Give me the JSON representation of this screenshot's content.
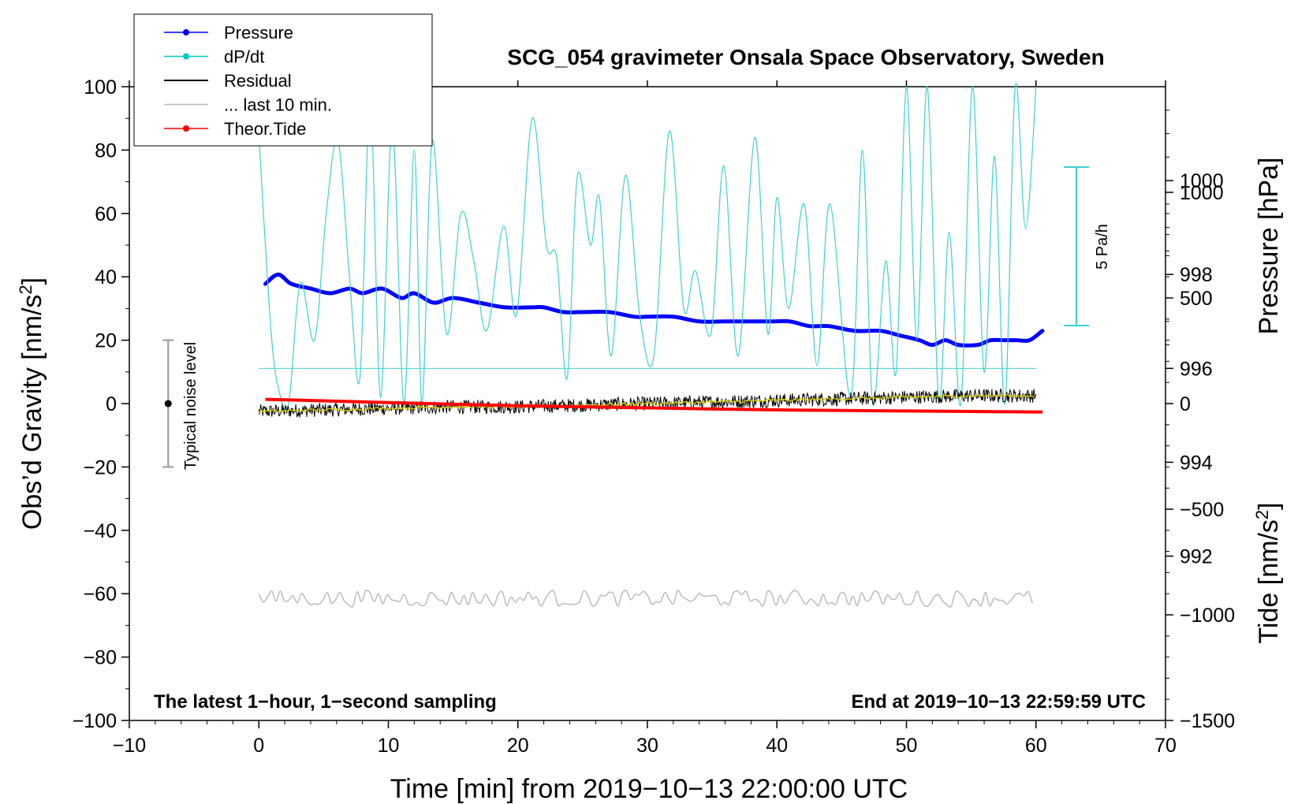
{
  "chart_data": {
    "type": "line",
    "title": "SCG_054 gravimeter Onsala Space Observatory, Sweden",
    "xlabel": "Time [min] from 2019−10−13 22:00:00 UTC",
    "ylabel_left": "Obs’d Gravity [nm/s",
    "ylabel_left_sup": "2",
    "ylabel_left_end": "]",
    "ylabel_right_pressure": "Pressure [hPa]",
    "ylabel_right_tide": "Tide [nm/s",
    "ylabel_right_tide_sup": "2",
    "ylabel_right_tide_end": "]",
    "xlim": [
      -10,
      70
    ],
    "ylim": [
      -100,
      100
    ],
    "pressure_lim": [
      988.5,
      1002
    ],
    "tide_lim": [
      -1500,
      1500
    ],
    "x_ticks": [
      "−10",
      "0",
      "10",
      "20",
      "30",
      "40",
      "50",
      "60",
      "70"
    ],
    "y_ticks": [
      "−100",
      "−80",
      "−60",
      "−40",
      "−20",
      "0",
      "20",
      "40",
      "60",
      "80",
      "100"
    ],
    "pressure_ticks": [
      "992",
      "994",
      "996",
      "998",
      "1000"
    ],
    "tide_ticks": [
      "−1500",
      "−1000",
      "−500",
      "0",
      "500",
      "1000"
    ],
    "annotation_left": "The latest 1−hour, 1−second sampling",
    "annotation_right": "End at 2019−10−13 22:59:59 UTC",
    "noise_label": "Typical noise level",
    "noise_range": [
      -20,
      20
    ],
    "dpdt_scale_label": "5 Pa/h",
    "dpdt_baseline_pressure": 996,
    "legend": [
      {
        "label": "Pressure",
        "color": "#0000ff",
        "marker": true
      },
      {
        "label": "dP/dt",
        "color": "#00c8c8",
        "marker": true
      },
      {
        "label": "Residual",
        "color": "#000000",
        "marker": false
      },
      {
        "label": "... last 10 min.",
        "color": "#bbbbbb",
        "marker": false
      },
      {
        "label": "Theor.Tide",
        "color": "#ff0000",
        "marker": true
      }
    ],
    "series": [
      {
        "name": "Pressure",
        "axis": "pressure",
        "color": "#0000ff",
        "x": [
          0.5,
          1.5,
          2.5,
          4,
          5.5,
          7,
          8,
          9.5,
          11,
          12,
          13.5,
          15,
          17,
          19,
          21,
          22,
          23.5,
          25,
          27,
          29,
          30,
          32,
          34,
          36,
          38,
          39.5,
          41,
          42.5,
          44,
          46,
          48,
          49.5,
          51,
          52,
          53,
          54,
          55.5,
          56.5,
          57.5,
          58.5,
          59.5,
          60.5
        ],
        "values": [
          997.8,
          998.0,
          997.8,
          997.7,
          997.6,
          997.7,
          997.6,
          997.7,
          997.5,
          997.6,
          997.4,
          997.5,
          997.4,
          997.3,
          997.3,
          997.3,
          997.2,
          997.2,
          997.2,
          997.1,
          997.1,
          997.1,
          997.0,
          997.0,
          997.0,
          997.0,
          997.0,
          996.9,
          996.9,
          996.8,
          996.8,
          996.7,
          996.6,
          996.5,
          996.6,
          996.5,
          996.5,
          996.6,
          996.6,
          996.6,
          996.6,
          996.8
        ]
      },
      {
        "name": "dP/dt",
        "axis": "left",
        "color": "#40d0d0",
        "x": [
          0,
          0.5,
          1,
          1.5,
          2.3,
          3.2,
          4.3,
          5.2,
          6.1,
          7,
          7.8,
          8.6,
          9.4,
          10.3,
          11.2,
          12,
          12.6,
          13.4,
          14.5,
          15.6,
          16.6,
          17.6,
          18.9,
          19.9,
          21.1,
          22.2,
          23,
          23.8,
          24.6,
          25.6,
          26.3,
          27.2,
          28.3,
          29.4,
          30.5,
          31.7,
          32.8,
          33.7,
          34.9,
          35.9,
          37,
          38.3,
          39.3,
          40,
          40.9,
          42.1,
          43.1,
          44.1,
          45.7,
          46.6,
          47.4,
          48.4,
          49.2,
          50,
          50.8,
          51.6,
          52.5,
          53.3,
          54.2,
          55.1,
          56,
          56.8,
          57.6,
          58.4,
          59.2,
          60
        ],
        "values": [
          85,
          50,
          20,
          5,
          0,
          38,
          20,
          60,
          83,
          40,
          8,
          95,
          2,
          88,
          0,
          80,
          0,
          83,
          22,
          60,
          45,
          23,
          56,
          28,
          90,
          50,
          46,
          8,
          72,
          50,
          65,
          15,
          72,
          28,
          15,
          86,
          30,
          42,
          22,
          75,
          15,
          84,
          22,
          65,
          30,
          63,
          12,
          63,
          2,
          80,
          0,
          45,
          10,
          100,
          20,
          100,
          1,
          54,
          0,
          100,
          10,
          78,
          0,
          100,
          55,
          100
        ]
      },
      {
        "name": "Residual",
        "axis": "left",
        "color": "#000000",
        "x": [
          0,
          5,
          10,
          15,
          20,
          25,
          30,
          35,
          40,
          45,
          50,
          55,
          60
        ],
        "values": [
          -2.5,
          -2,
          -1.5,
          -1,
          -1,
          -0.5,
          0,
          0.5,
          1,
          1.5,
          2,
          2.5,
          2.5
        ],
        "noise_amplitude": 2.2
      },
      {
        "name": "... last 10 min.",
        "axis": "left",
        "color": "#bbbbbb",
        "x": [
          0,
          60
        ],
        "values": [
          -61.5,
          -61.5
        ],
        "noise_amplitude": 2.5
      },
      {
        "name": "Theor.Tide",
        "axis": "tide",
        "color": "#ff0000",
        "x": [
          0.5,
          10,
          20,
          30,
          40,
          50,
          60.5
        ],
        "values": [
          20,
          5,
          -10,
          -20,
          -30,
          -35,
          -40
        ]
      }
    ]
  }
}
